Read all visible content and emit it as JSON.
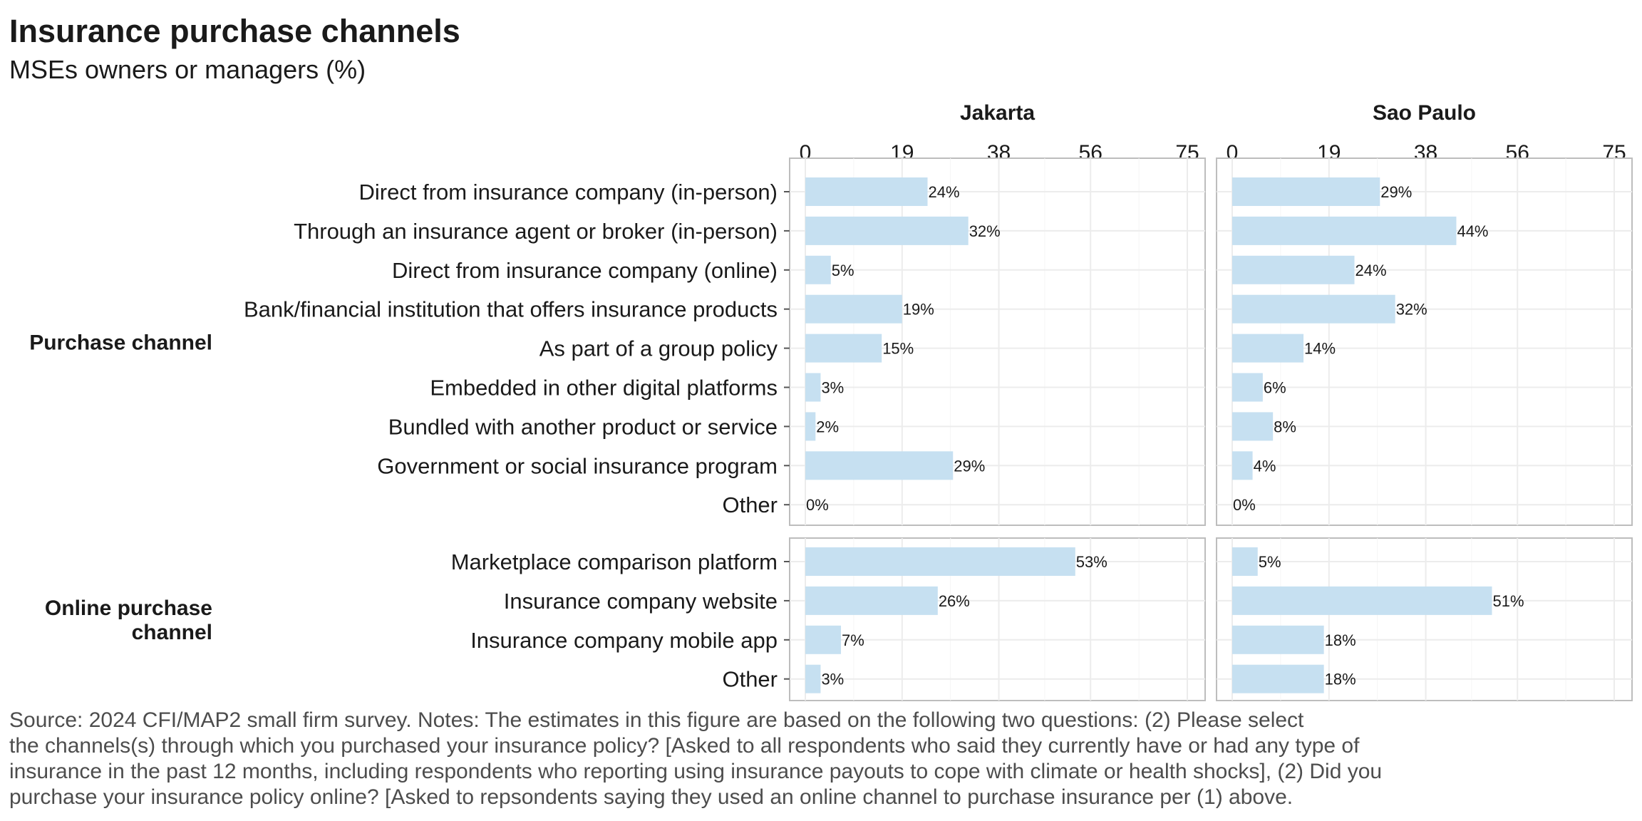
{
  "chart_data": {
    "type": "bar",
    "title": "Insurance purchase channels",
    "subtitle": "MSEs owners or managers (%)",
    "panels": [
      "Jakarta",
      "Sao Paulo"
    ],
    "x_ticks": [
      "0",
      "19",
      "38",
      "56",
      "75"
    ],
    "xlim": [
      0,
      75
    ],
    "grid": true,
    "bar_color": "#c6e0f1",
    "groups": [
      {
        "label": "Purchase channel",
        "categories": [
          "Direct from insurance company (in-person)",
          "Through an insurance agent or broker (in-person)",
          "Direct from insurance company (online)",
          "Bank/financial institution that offers insurance products",
          "As part of a group policy",
          "Embedded in other digital platforms",
          "Bundled with another product or service",
          "Government or social insurance program",
          "Other"
        ],
        "series": [
          {
            "name": "Jakarta",
            "values": [
              24,
              32,
              5,
              19,
              15,
              3,
              2,
              29,
              0
            ]
          },
          {
            "name": "Sao Paulo",
            "values": [
              29,
              44,
              24,
              32,
              14,
              6,
              8,
              4,
              0
            ]
          }
        ]
      },
      {
        "label": "Online purchase channel",
        "categories": [
          "Marketplace comparison platform",
          "Insurance company website",
          "Insurance company mobile app",
          "Other"
        ],
        "series": [
          {
            "name": "Jakarta",
            "values": [
              53,
              26,
              7,
              3
            ]
          },
          {
            "name": "Sao Paulo",
            "values": [
              5,
              51,
              18,
              18
            ]
          }
        ]
      }
    ],
    "source_lines": [
      "Source: 2024 CFI/MAP2 small firm survey. Notes: The estimates in this figure are based on the following two questions: (2) Please select",
      "the channels(s) through which you purchased your insurance policy? [Asked to all respondents who said they currently have or had any type of",
      "insurance in the past 12 months, including respondents who reporting using insurance payouts to cope with climate or health shocks], (2) Did you",
      "purchase your insurance policy online? [Asked to repsondents saying they used an online channel to purchase insurance per (1) above."
    ]
  }
}
